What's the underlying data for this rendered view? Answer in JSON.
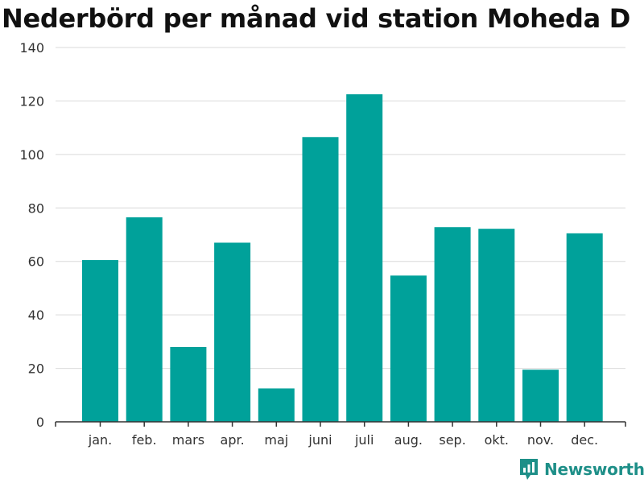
{
  "chart_data": {
    "type": "bar",
    "title": "Nederbörd per månad vid station Moheda D",
    "xlabel": "",
    "ylabel": "",
    "categories": [
      "jan.",
      "feb.",
      "mars",
      "apr.",
      "maj",
      "juni",
      "juli",
      "aug.",
      "sep.",
      "okt.",
      "nov.",
      "dec."
    ],
    "values": [
      60.5,
      76.5,
      28,
      67,
      12.5,
      106.5,
      122.5,
      54.7,
      72.8,
      72.2,
      19.5,
      70.5
    ],
    "ylim": [
      0,
      140
    ],
    "yticks": [
      0,
      20,
      40,
      60,
      80,
      100,
      120,
      140
    ],
    "grid": true,
    "bar_color": "#00a19a"
  },
  "brand": {
    "name": "Newsworthy",
    "icon": "newsworthy-logo-icon",
    "color": "#1e8f88"
  }
}
